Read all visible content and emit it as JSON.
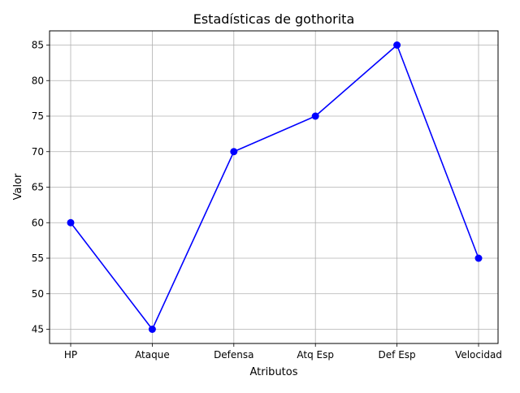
{
  "chart_data": {
    "type": "line",
    "title": "Estadísticas de gothorita",
    "xlabel": "Atributos",
    "ylabel": "Valor",
    "categories": [
      "HP",
      "Ataque",
      "Defensa",
      "Atq Esp",
      "Def Esp",
      "Velocidad"
    ],
    "series": [
      {
        "values": [
          60,
          45,
          70,
          75,
          85,
          55
        ],
        "color": "#0000ff",
        "marker": "circle"
      }
    ],
    "ylim": [
      43,
      87
    ],
    "yticks": [
      45,
      50,
      55,
      60,
      65,
      70,
      75,
      80,
      85
    ],
    "grid": true
  }
}
